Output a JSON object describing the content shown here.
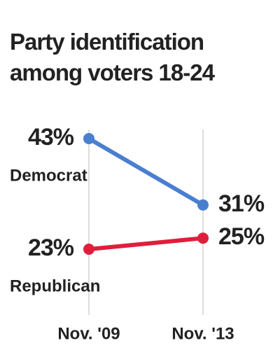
{
  "chart_data": {
    "type": "line",
    "title": "Party identification among voters 18-24",
    "categories": [
      "Nov. '09",
      "Nov. '13"
    ],
    "series": [
      {
        "name": "Democrat",
        "color": "#4a7fd0",
        "values": [
          43,
          31
        ],
        "value_labels": [
          "43%",
          "31%"
        ]
      },
      {
        "name": "Republican",
        "color": "#e01e3c",
        "values": [
          23,
          25
        ],
        "value_labels": [
          "23%",
          "25%"
        ]
      }
    ]
  }
}
